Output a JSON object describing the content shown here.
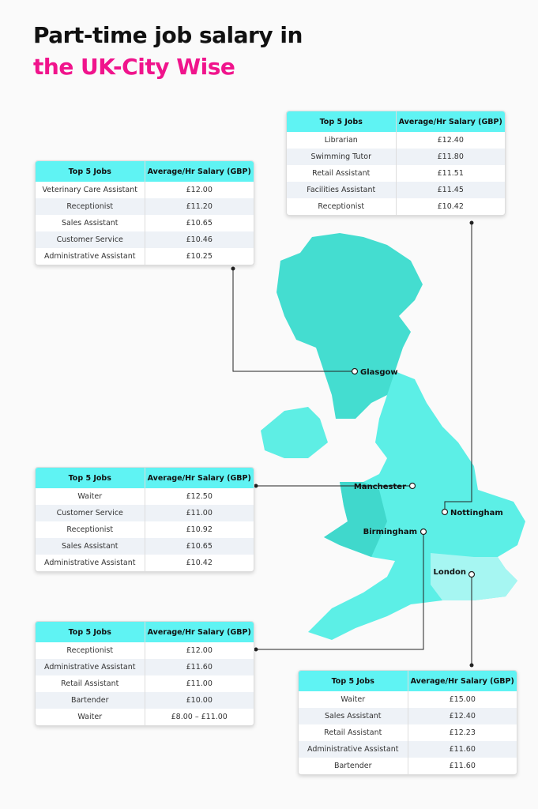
{
  "title": {
    "line1": "Part-time job salary in",
    "line2": "the UK-City Wise"
  },
  "tables": [
    {
      "city": "Nottingham",
      "header": [
        "Top 5 Jobs",
        "Average/Hr Salary (GBP)"
      ],
      "rows": [
        [
          "Librarian",
          "£12.40"
        ],
        [
          "Swimming Tutor",
          "£11.80"
        ],
        [
          "Retail Assistant",
          "£11.51"
        ],
        [
          "Facilities Assistant",
          "£11.45"
        ],
        [
          "Receptionist",
          "£10.42"
        ]
      ]
    },
    {
      "city": "Glasgow",
      "header": [
        "Top 5 Jobs",
        "Average/Hr Salary (GBP)"
      ],
      "rows": [
        [
          "Veterinary Care Assistant",
          "£12.00"
        ],
        [
          "Receptionist",
          "£11.20"
        ],
        [
          "Sales Assistant",
          "£10.65"
        ],
        [
          "Customer Service",
          "£10.46"
        ],
        [
          "Administrative Assistant",
          "£10.25"
        ]
      ]
    },
    {
      "city": "Manchester",
      "header": [
        "Top 5 Jobs",
        "Average/Hr Salary (GBP)"
      ],
      "rows": [
        [
          "Waiter",
          "£12.50"
        ],
        [
          "Customer Service",
          "£11.00"
        ],
        [
          "Receptionist",
          "£10.92"
        ],
        [
          "Sales Assistant",
          "£10.65"
        ],
        [
          "Administrative Assistant",
          "£10.42"
        ]
      ]
    },
    {
      "city": "Birmingham",
      "header": [
        "Top 5 Jobs",
        "Average/Hr Salary (GBP)"
      ],
      "rows": [
        [
          "Receptionist",
          "£12.00"
        ],
        [
          "Administrative Assistant",
          "£11.60"
        ],
        [
          "Retail Assistant",
          "£11.00"
        ],
        [
          "Bartender",
          "£10.00"
        ],
        [
          "Waiter",
          "£8.00 – £11.00"
        ]
      ]
    },
    {
      "city": "London",
      "header": [
        "Top 5 Jobs",
        "Average/Hr Salary (GBP)"
      ],
      "rows": [
        [
          "Waiter",
          "£15.00"
        ],
        [
          "Sales Assistant",
          "£12.40"
        ],
        [
          "Retail Assistant",
          "£12.23"
        ],
        [
          "Administrative Assistant",
          "£11.60"
        ],
        [
          "Bartender",
          "£11.60"
        ]
      ]
    }
  ]
}
